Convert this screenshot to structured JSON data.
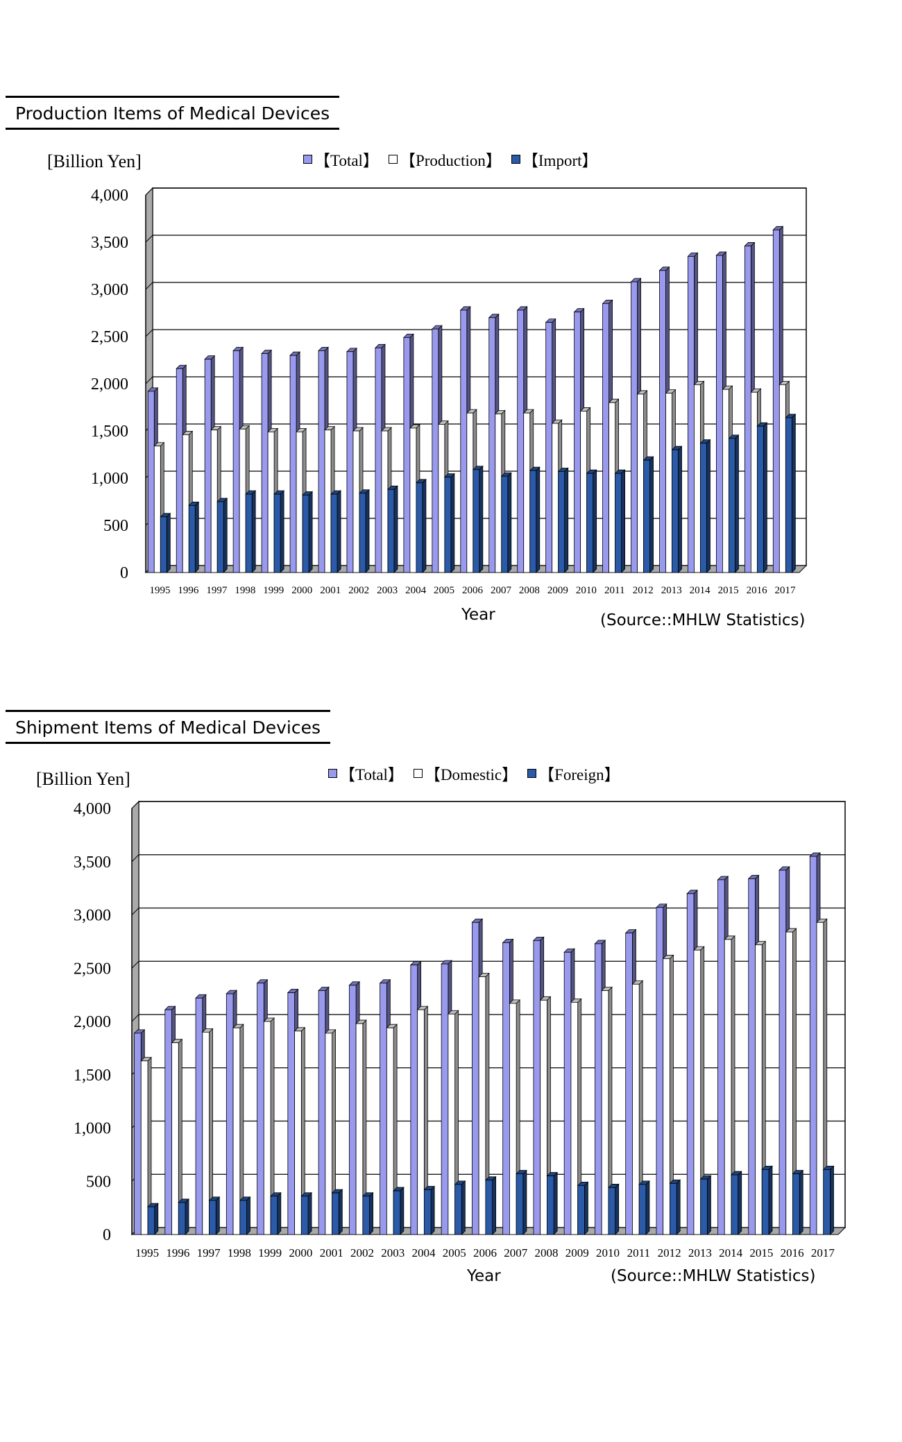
{
  "colors": {
    "total": "#9999ee",
    "production": "#ffffff",
    "import": "#2a5aa8",
    "axis": "#000000",
    "grid": "#000000",
    "wall": "#aaaaaa"
  },
  "chart_data": [
    {
      "type": "bar",
      "title": "Production Items of Medical Devices",
      "ylabel": "[Billion Yen]",
      "xlabel": "Year",
      "source": "(Source::MHLW Statistics)",
      "ylim": [
        0,
        4000
      ],
      "yticks": [
        "4,000",
        "3,500",
        "3,000",
        "2,500",
        "2,000",
        "1,500",
        "1,000",
        "500",
        "0"
      ],
      "ytick_values": [
        4000,
        3500,
        3000,
        2500,
        2000,
        1500,
        1000,
        500,
        0
      ],
      "legend_position": "top",
      "grid": true,
      "categories": [
        "1995",
        "1996",
        "1997",
        "1998",
        "1999",
        "2000",
        "2001",
        "2002",
        "2003",
        "2004",
        "2005",
        "2006",
        "2007",
        "2008",
        "2009",
        "2010",
        "2011",
        "2012",
        "2013",
        "2014",
        "2015",
        "2016",
        "2017"
      ],
      "series": [
        {
          "name": "【Total】",
          "color_key": "total",
          "values": [
            1920,
            2160,
            2260,
            2350,
            2320,
            2300,
            2350,
            2340,
            2380,
            2490,
            2580,
            2780,
            2700,
            2780,
            2650,
            2760,
            2850,
            3080,
            3200,
            3350,
            3360,
            3460,
            3630
          ]
        },
        {
          "name": "【Production】",
          "color_key": "production",
          "values": [
            1340,
            1460,
            1510,
            1520,
            1490,
            1490,
            1510,
            1500,
            1500,
            1530,
            1570,
            1690,
            1680,
            1690,
            1580,
            1710,
            1800,
            1890,
            1900,
            1990,
            1940,
            1910,
            1990
          ]
        },
        {
          "name": "【Import】",
          "color_key": "import",
          "values": [
            590,
            710,
            750,
            830,
            830,
            820,
            830,
            840,
            880,
            950,
            1010,
            1090,
            1020,
            1080,
            1070,
            1050,
            1050,
            1190,
            1300,
            1370,
            1420,
            1550,
            1640
          ]
        }
      ]
    },
    {
      "type": "bar",
      "title": "Shipment Items of Medical Devices",
      "ylabel": "[Billion Yen]",
      "xlabel": "Year",
      "source": "(Source::MHLW Statistics)",
      "ylim": [
        0,
        4000
      ],
      "yticks": [
        "4,000",
        "3,500",
        "3,000",
        "2,500",
        "2,000",
        "1,500",
        "1,000",
        "500",
        "0"
      ],
      "ytick_values": [
        4000,
        3500,
        3000,
        2500,
        2000,
        1500,
        1000,
        500,
        0
      ],
      "legend_position": "top",
      "grid": true,
      "categories": [
        "1995",
        "1996",
        "1997",
        "1998",
        "1999",
        "2000",
        "2001",
        "2002",
        "2003",
        "2004",
        "2005",
        "2006",
        "2007",
        "2008",
        "2009",
        "2010",
        "2011",
        "2012",
        "2013",
        "2014",
        "2015",
        "2016",
        "2017"
      ],
      "series": [
        {
          "name": "【Total】",
          "color_key": "total",
          "values": [
            1890,
            2110,
            2220,
            2260,
            2360,
            2270,
            2290,
            2340,
            2360,
            2530,
            2540,
            2930,
            2740,
            2760,
            2650,
            2730,
            2830,
            3070,
            3200,
            3330,
            3340,
            3420,
            3550
          ]
        },
        {
          "name": "【Domestic】",
          "color_key": "production",
          "values": [
            1630,
            1800,
            1900,
            1940,
            2000,
            1910,
            1890,
            1980,
            1940,
            2110,
            2070,
            2420,
            2170,
            2200,
            2180,
            2290,
            2350,
            2590,
            2670,
            2770,
            2720,
            2840,
            2930
          ]
        },
        {
          "name": "【Foreign】",
          "color_key": "import",
          "values": [
            260,
            300,
            320,
            320,
            360,
            360,
            390,
            360,
            410,
            420,
            470,
            510,
            570,
            550,
            460,
            440,
            470,
            480,
            520,
            560,
            610,
            570,
            610
          ]
        }
      ]
    }
  ]
}
